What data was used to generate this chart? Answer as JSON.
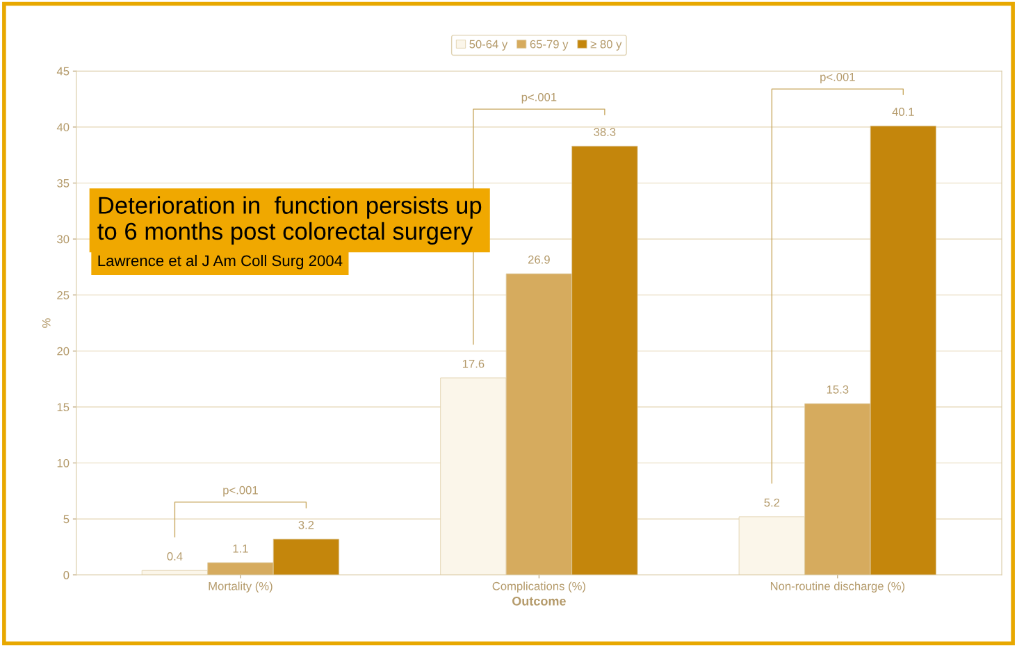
{
  "chart_data": {
    "type": "bar",
    "xlabel": "Outcome",
    "ylabel": "%",
    "categories": [
      "Mortality (%)",
      "Complications (%)",
      "Non-routine discharge (%)"
    ],
    "series": [
      {
        "name": "50-64 y",
        "color": "#fbf6ea",
        "values": [
          0.4,
          17.6,
          5.2
        ]
      },
      {
        "name": "65-79 y",
        "color": "#d6ab5e",
        "values": [
          1.1,
          26.9,
          15.3
        ]
      },
      {
        "name": "≥ 80 y",
        "color": "#c4860c",
        "values": [
          3.2,
          38.3,
          40.1
        ]
      }
    ],
    "ylim": [
      0,
      45
    ],
    "yticks": [
      0,
      5,
      10,
      15,
      20,
      25,
      30,
      35,
      40,
      45
    ],
    "grid": "y",
    "legend": "top",
    "data_labels": true,
    "annotations": [
      "p<.001",
      "p<.001",
      "p<.001",
      "Deterioration in  function persists up to 6 months post colorectal surgery",
      "Lawrence et al J Am Coll Surg 2004"
    ]
  }
}
